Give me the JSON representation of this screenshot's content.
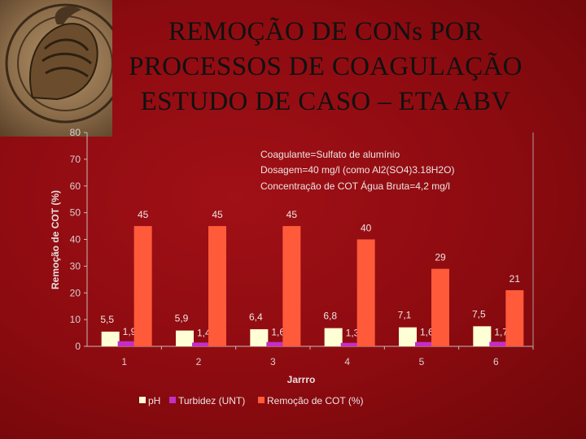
{
  "slide": {
    "title_lines": [
      "REMOÇÃO DE CONs POR",
      "PROCESSOS DE COAGULAÇÃO",
      "ESTUDO DE CASO – ETA ABV"
    ],
    "logo_icon": "knight-helmet-seal-icon"
  },
  "colors": {
    "background": "#8c0b10",
    "ph": "#ffffd6",
    "turbidez": "#c42ec8",
    "remocao": "#ff5a3a"
  },
  "chart_data": {
    "type": "bar",
    "categories": [
      "1",
      "2",
      "3",
      "4",
      "5",
      "6"
    ],
    "series": [
      {
        "name": "pH",
        "values": [
          5.5,
          5.9,
          6.4,
          6.8,
          7.1,
          7.5
        ],
        "labels": [
          "5,5",
          "5,9",
          "6,4",
          "6,8",
          "7,1",
          "7,5"
        ]
      },
      {
        "name": "Turbidez (UNT)",
        "values": [
          1.9,
          1.4,
          1.6,
          1.3,
          1.6,
          1.7
        ],
        "labels": [
          "1,9",
          "1,4",
          "1,6",
          "1,3",
          "1,6",
          "1,7"
        ]
      },
      {
        "name": "Remoção de COT (%)",
        "values": [
          45,
          45,
          45,
          40,
          29,
          21
        ],
        "labels": [
          "45",
          "45",
          "45",
          "40",
          "29",
          "21"
        ]
      }
    ],
    "xlabel": "Jarrro",
    "ylabel": "Remoção de COT (%)",
    "ylim": [
      0,
      80
    ],
    "yticks": [
      0,
      10,
      20,
      30,
      40,
      50,
      60,
      70,
      80
    ],
    "annotations": [
      "Coagulante=Sulfato de alumínio",
      "Dosagem=40 mg/l (como Al2(SO4)3.18H2O)",
      "Concentração de COT Água Bruta=4,2 mg/l"
    ],
    "legend_position": "bottom",
    "grid": false
  }
}
